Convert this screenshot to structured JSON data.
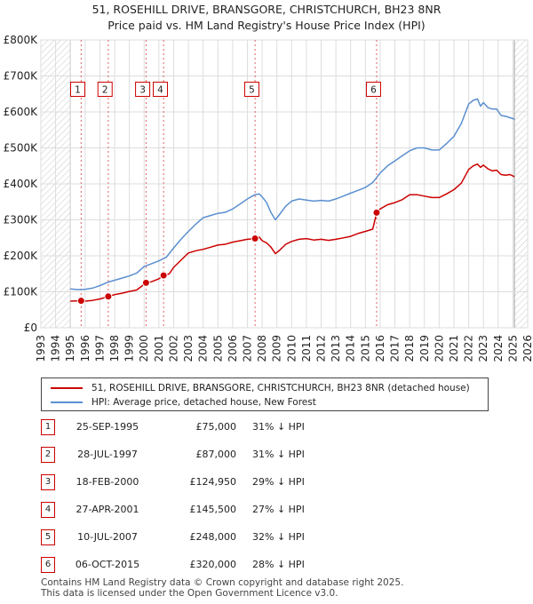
{
  "chart_data": {
    "type": "line",
    "title": "51, ROSEHILL DRIVE, BRANSGORE, CHRISTCHURCH, BH23 8NR",
    "subtitle": "Price paid vs. HM Land Registry's House Price Index (HPI)",
    "xlim": [
      1993,
      2026
    ],
    "ylim": [
      0,
      800000
    ],
    "x_ticks": [
      1993,
      1994,
      1995,
      1996,
      1997,
      1998,
      1999,
      2000,
      2001,
      2002,
      2003,
      2004,
      2005,
      2006,
      2007,
      2008,
      2009,
      2010,
      2011,
      2012,
      2013,
      2014,
      2015,
      2016,
      2017,
      2018,
      2019,
      2020,
      2021,
      2022,
      2023,
      2024,
      2025,
      2026
    ],
    "y_ticks": [
      {
        "value": 0,
        "label": "£0"
      },
      {
        "value": 100000,
        "label": "£100K"
      },
      {
        "value": 200000,
        "label": "£200K"
      },
      {
        "value": 300000,
        "label": "£300K"
      },
      {
        "value": 400000,
        "label": "£400K"
      },
      {
        "value": 500000,
        "label": "£500K"
      },
      {
        "value": 600000,
        "label": "£600K"
      },
      {
        "value": 700000,
        "label": "£700K"
      },
      {
        "value": 800000,
        "label": "£800K"
      }
    ],
    "hatched_ranges": [
      [
        1993,
        1995.0
      ],
      [
        2025.1,
        2026
      ]
    ],
    "series": [
      {
        "name": "51, ROSEHILL DRIVE, BRANSGORE, CHRISTCHURCH, BH23 8NR (detached house)",
        "color": "#cc0000",
        "x": [
          1995.0,
          1995.73,
          1996.0,
          1996.5,
          1997.0,
          1997.57,
          1998.0,
          1998.5,
          1999.0,
          1999.5,
          2000.13,
          2000.5,
          2001.0,
          2001.32,
          2001.7,
          2002.0,
          2002.5,
          2003.0,
          2003.5,
          2004.0,
          2004.5,
          2005.0,
          2005.5,
          2006.0,
          2006.5,
          2007.0,
          2007.52,
          2007.8,
          2008.0,
          2008.3,
          2008.6,
          2008.9,
          2009.2,
          2009.6,
          2010.0,
          2010.5,
          2011.0,
          2011.5,
          2012.0,
          2012.5,
          2013.0,
          2013.5,
          2014.0,
          2014.5,
          2015.0,
          2015.5,
          2015.76,
          2016.0,
          2016.5,
          2017.0,
          2017.5,
          2018.0,
          2018.5,
          2019.0,
          2019.5,
          2020.0,
          2020.5,
          2021.0,
          2021.5,
          2022.0,
          2022.3,
          2022.6,
          2022.8,
          2023.0,
          2023.3,
          2023.6,
          2023.9,
          2024.2,
          2024.5,
          2024.8,
          2025.1
        ],
        "y": [
          74000,
          75000,
          74000,
          76000,
          80000,
          87000,
          92000,
          96000,
          101000,
          105000,
          124950,
          128000,
          136000,
          145500,
          150000,
          168000,
          188000,
          208000,
          214000,
          218000,
          224000,
          230000,
          232000,
          238000,
          242000,
          246000,
          248000,
          252000,
          242000,
          236000,
          224000,
          206000,
          216000,
          232000,
          240000,
          246000,
          248000,
          244000,
          246000,
          243000,
          246000,
          250000,
          254000,
          262000,
          268000,
          274000,
          320000,
          330000,
          342000,
          348000,
          356000,
          370000,
          370000,
          366000,
          362000,
          362000,
          372000,
          384000,
          402000,
          440000,
          450000,
          455000,
          446000,
          452000,
          442000,
          436000,
          438000,
          426000,
          424000,
          426000,
          420000
        ]
      },
      {
        "name": "HPI: Average price, detached house, New Forest",
        "color": "#5b8fd0",
        "x": [
          1995.0,
          1995.5,
          1996.0,
          1996.5,
          1997.0,
          1997.5,
          1998.0,
          1998.5,
          1999.0,
          1999.5,
          2000.0,
          2000.5,
          2001.0,
          2001.5,
          2002.0,
          2002.5,
          2003.0,
          2003.5,
          2004.0,
          2004.5,
          2005.0,
          2005.5,
          2006.0,
          2006.5,
          2007.0,
          2007.5,
          2007.8,
          2008.0,
          2008.3,
          2008.6,
          2008.9,
          2009.2,
          2009.6,
          2010.0,
          2010.5,
          2011.0,
          2011.5,
          2012.0,
          2012.5,
          2013.0,
          2013.5,
          2014.0,
          2014.5,
          2015.0,
          2015.5,
          2016.0,
          2016.5,
          2017.0,
          2017.5,
          2018.0,
          2018.5,
          2019.0,
          2019.5,
          2020.0,
          2020.5,
          2021.0,
          2021.5,
          2022.0,
          2022.3,
          2022.6,
          2022.8,
          2023.0,
          2023.3,
          2023.6,
          2023.9,
          2024.2,
          2024.5,
          2024.8,
          2025.1
        ],
        "y": [
          108000,
          106000,
          107000,
          110000,
          117000,
          126000,
          132000,
          138000,
          144000,
          152000,
          170000,
          178000,
          186000,
          196000,
          222000,
          246000,
          268000,
          288000,
          306000,
          312000,
          318000,
          321000,
          330000,
          344000,
          358000,
          370000,
          372000,
          364000,
          348000,
          320000,
          300000,
          316000,
          338000,
          352000,
          358000,
          355000,
          352000,
          354000,
          352000,
          358000,
          366000,
          374000,
          382000,
          390000,
          404000,
          430000,
          450000,
          464000,
          478000,
          492000,
          500000,
          500000,
          494000,
          494000,
          512000,
          532000,
          568000,
          622000,
          632000,
          636000,
          616000,
          626000,
          612000,
          608000,
          608000,
          590000,
          588000,
          584000,
          580000
        ]
      }
    ],
    "sales": [
      {
        "label": "1",
        "x": 1995.73,
        "y": 75000,
        "label_x": 1995.5
      },
      {
        "label": "2",
        "x": 1997.57,
        "y": 87000,
        "label_x": 1997.35
      },
      {
        "label": "3",
        "x": 2000.13,
        "y": 124950,
        "label_x": 1999.9
      },
      {
        "label": "4",
        "x": 2001.32,
        "y": 145500,
        "label_x": 2001.1
      },
      {
        "label": "5",
        "x": 2007.52,
        "y": 248000,
        "label_x": 2007.3
      },
      {
        "label": "6",
        "x": 2015.76,
        "y": 320000,
        "label_x": 2015.55
      }
    ],
    "label_box_value": 663000
  },
  "legend": {
    "items": [
      {
        "label": "51, ROSEHILL DRIVE, BRANSGORE, CHRISTCHURCH, BH23 8NR (detached house)",
        "color": "#cc0000"
      },
      {
        "label": "HPI: Average price, detached house, New Forest",
        "color": "#5b8fd0"
      }
    ]
  },
  "transactions": [
    {
      "num": "1",
      "date": "25-SEP-1995",
      "price": "£75,000",
      "hpi": "31% ↓ HPI"
    },
    {
      "num": "2",
      "date": "28-JUL-1997",
      "price": "£87,000",
      "hpi": "31% ↓ HPI"
    },
    {
      "num": "3",
      "date": "18-FEB-2000",
      "price": "£124,950",
      "hpi": "29% ↓ HPI"
    },
    {
      "num": "4",
      "date": "27-APR-2001",
      "price": "£145,500",
      "hpi": "27% ↓ HPI"
    },
    {
      "num": "5",
      "date": "10-JUL-2007",
      "price": "£248,000",
      "hpi": "32% ↓ HPI"
    },
    {
      "num": "6",
      "date": "06-OCT-2015",
      "price": "£320,000",
      "hpi": "28% ↓ HPI"
    }
  ],
  "footer": {
    "line1": "Contains HM Land Registry data © Crown copyright and database right 2025.",
    "line2": "This data is licensed under the Open Government Licence v3.0."
  }
}
